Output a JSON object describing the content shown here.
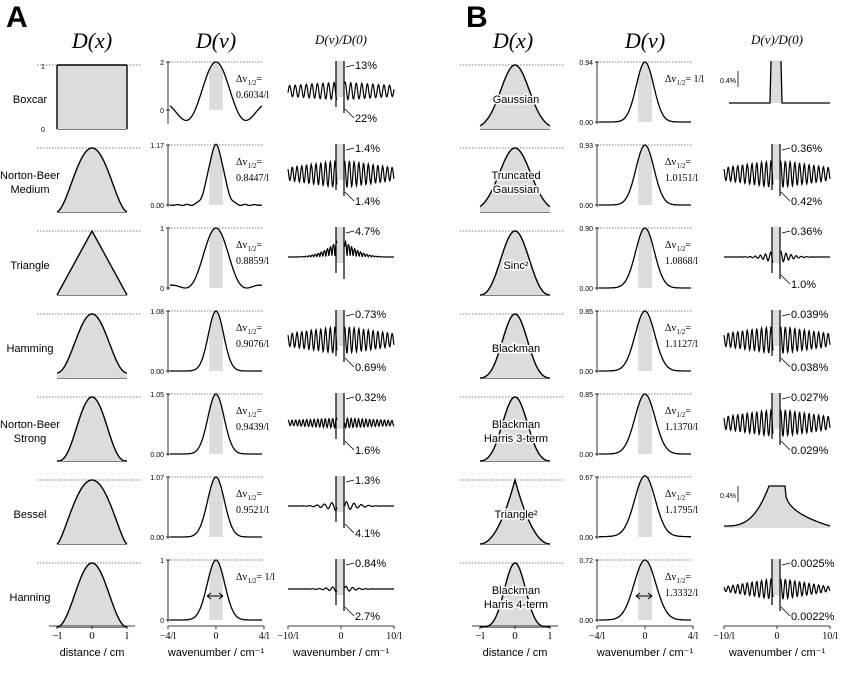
{
  "panels": {
    "A": {
      "letter": "A",
      "headers": {
        "dx": "D(x)",
        "dv": "D(v)",
        "ratio": "D(v)/D(0)"
      },
      "rows": [
        {
          "name_lines": [
            "Boxcar"
          ],
          "peak": "2",
          "zero": "0",
          "dx_top": "1",
          "dx_zero": "0",
          "delta_value": "0.6034/l",
          "pct_top": "13%",
          "pct_bot": "22%"
        },
        {
          "name_lines": [
            "Norton-Beer",
            "Medium"
          ],
          "peak": "1.17",
          "zero": "0.00",
          "delta_value": "0.8447/l",
          "pct_top": "1.4%",
          "pct_bot": "1.4%"
        },
        {
          "name_lines": [
            "Triangle"
          ],
          "peak": "1",
          "zero": "0",
          "delta_value": "0.8859/l",
          "pct_top": "4.7%",
          "pct_bot": ""
        },
        {
          "name_lines": [
            "Hamming"
          ],
          "peak": "1.08",
          "zero": "0.00",
          "delta_value": "0.9076/l",
          "pct_top": "0.73%",
          "pct_bot": "0.69%"
        },
        {
          "name_lines": [
            "Norton-Beer",
            "Strong"
          ],
          "peak": "1.05",
          "zero": "0.00",
          "delta_value": "0.9439/l",
          "pct_top": "0.32%",
          "pct_bot": "1.6%"
        },
        {
          "name_lines": [
            "Bessel"
          ],
          "peak": "1.07",
          "zero": "0.00",
          "delta_value": "0.9521/l",
          "pct_top": "1.3%",
          "pct_bot": "4.1%"
        },
        {
          "name_lines": [
            "Hanning"
          ],
          "peak": "1",
          "zero": "0",
          "delta_value": "= 1/l",
          "pct_top": "0.84%",
          "pct_bot": "2.7%"
        }
      ]
    },
    "B": {
      "letter": "B",
      "headers": {
        "dx": "D(x)",
        "dv": "D(v)",
        "ratio": "D(v)/D(0)"
      },
      "rows": [
        {
          "name_lines": [
            "Gaussian"
          ],
          "peak": "0.94",
          "zero": "0.00",
          "delta_value": "= 1/l",
          "pct_top": "",
          "pct_bot": "",
          "scale": "0.4%"
        },
        {
          "name_lines": [
            "Truncated",
            "Gaussian"
          ],
          "peak": "0.93",
          "zero": "0.00",
          "delta_value": "1.0151/l",
          "pct_top": "0.36%",
          "pct_bot": "0.42%"
        },
        {
          "name_lines": [
            "Sinc²"
          ],
          "peak": "0.90",
          "zero": "0.00",
          "delta_value": "1.0868/l",
          "pct_top": "0.36%",
          "pct_bot": "1.0%"
        },
        {
          "name_lines": [
            "Blackman"
          ],
          "peak": "0.85",
          "zero": "0.00",
          "delta_value": "1.1127/l",
          "pct_top": "0.039%",
          "pct_bot": "0.038%"
        },
        {
          "name_lines": [
            "Blackman",
            "Harris 3-term"
          ],
          "peak": "0.85",
          "zero": "0.00",
          "delta_value": "1.1370/l",
          "pct_top": "0.027%",
          "pct_bot": "0.029%"
        },
        {
          "name_lines": [
            "Triangle²"
          ],
          "peak": "0.67",
          "zero": "0.00",
          "delta_value": "1.1795/l",
          "pct_top": "",
          "pct_bot": "",
          "scale": "0.4%"
        },
        {
          "name_lines": [
            "Blackman",
            "Harris 4-term"
          ],
          "peak": "0.72",
          "zero": "0.00",
          "delta_value": "1.3332/l",
          "pct_top": "0.0025%",
          "pct_bot": "0.0022%"
        }
      ]
    }
  },
  "delta_label": "Δv1/2",
  "axes": {
    "dx_ticks": [
      "−l",
      "0",
      "l"
    ],
    "dx_label": "distance / cm",
    "dv_ticks": [
      "−4/l",
      "0",
      "4/l"
    ],
    "dv_label": "wavenumber / cm⁻¹",
    "ratio_ticks": [
      "−10/l",
      "0",
      "10/l"
    ],
    "ratio_label": "wavenumber / cm⁻¹"
  }
}
